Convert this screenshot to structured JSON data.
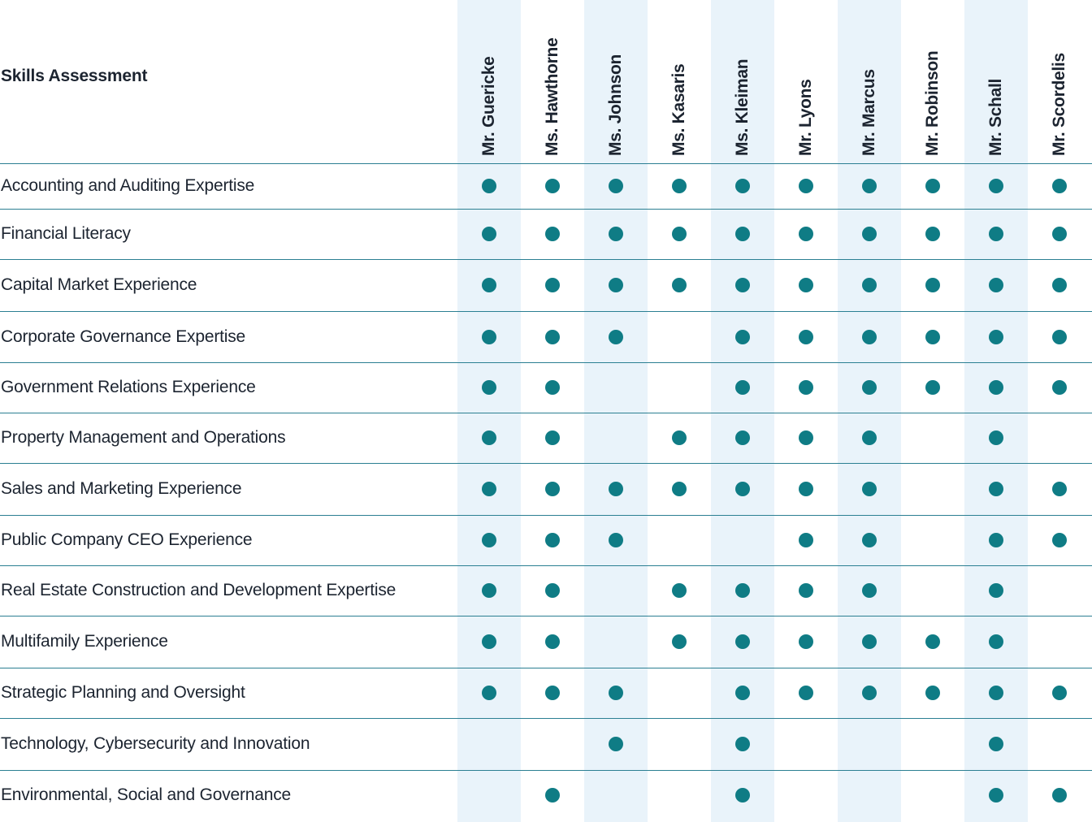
{
  "header": {
    "title": "Skills Assessment"
  },
  "directors": [
    "Mr. Guericke",
    "Ms. Hawthorne",
    "Ms. Johnson",
    "Ms. Kasaris",
    "Ms. Kleiman",
    "Mr. Lyons",
    "Mr. Marcus",
    "Mr. Robinson",
    "Mr. Schall",
    "Mr. Scordelis"
  ],
  "skills": [
    {
      "label": "Accounting and Auditing Expertise",
      "marks": [
        1,
        1,
        1,
        1,
        1,
        1,
        1,
        1,
        1,
        1
      ]
    },
    {
      "label": "Financial Literacy",
      "marks": [
        1,
        1,
        1,
        1,
        1,
        1,
        1,
        1,
        1,
        1
      ]
    },
    {
      "label": "Capital Market Experience",
      "marks": [
        1,
        1,
        1,
        1,
        1,
        1,
        1,
        1,
        1,
        1
      ]
    },
    {
      "label": "Corporate Governance Expertise",
      "marks": [
        1,
        1,
        1,
        0,
        1,
        1,
        1,
        1,
        1,
        1
      ]
    },
    {
      "label": "Government Relations Experience",
      "marks": [
        1,
        1,
        0,
        0,
        1,
        1,
        1,
        1,
        1,
        1
      ]
    },
    {
      "label": "Property Management and Operations",
      "marks": [
        1,
        1,
        0,
        1,
        1,
        1,
        1,
        0,
        1,
        0
      ]
    },
    {
      "label": "Sales and Marketing Experience",
      "marks": [
        1,
        1,
        1,
        1,
        1,
        1,
        1,
        0,
        1,
        1
      ]
    },
    {
      "label": "Public Company CEO Experience",
      "marks": [
        1,
        1,
        1,
        0,
        0,
        1,
        1,
        0,
        1,
        1
      ]
    },
    {
      "label": "Real Estate Construction and Development Expertise",
      "marks": [
        1,
        1,
        0,
        1,
        1,
        1,
        1,
        0,
        1,
        0
      ]
    },
    {
      "label": "Multifamily Experience",
      "marks": [
        1,
        1,
        0,
        1,
        1,
        1,
        1,
        1,
        1,
        0
      ]
    },
    {
      "label": "Strategic Planning and Oversight",
      "marks": [
        1,
        1,
        1,
        0,
        1,
        1,
        1,
        1,
        1,
        1
      ]
    },
    {
      "label": "Technology, Cybersecurity and Innovation",
      "marks": [
        0,
        0,
        1,
        0,
        1,
        0,
        0,
        0,
        1,
        0
      ]
    },
    {
      "label": "Environmental, Social and Governance",
      "marks": [
        0,
        1,
        0,
        0,
        1,
        0,
        0,
        0,
        1,
        1
      ]
    }
  ],
  "colors": {
    "dot": "#0f7c85",
    "band": "#e9f3fa",
    "rule": "#2b7f92",
    "text": "#1c2430"
  }
}
